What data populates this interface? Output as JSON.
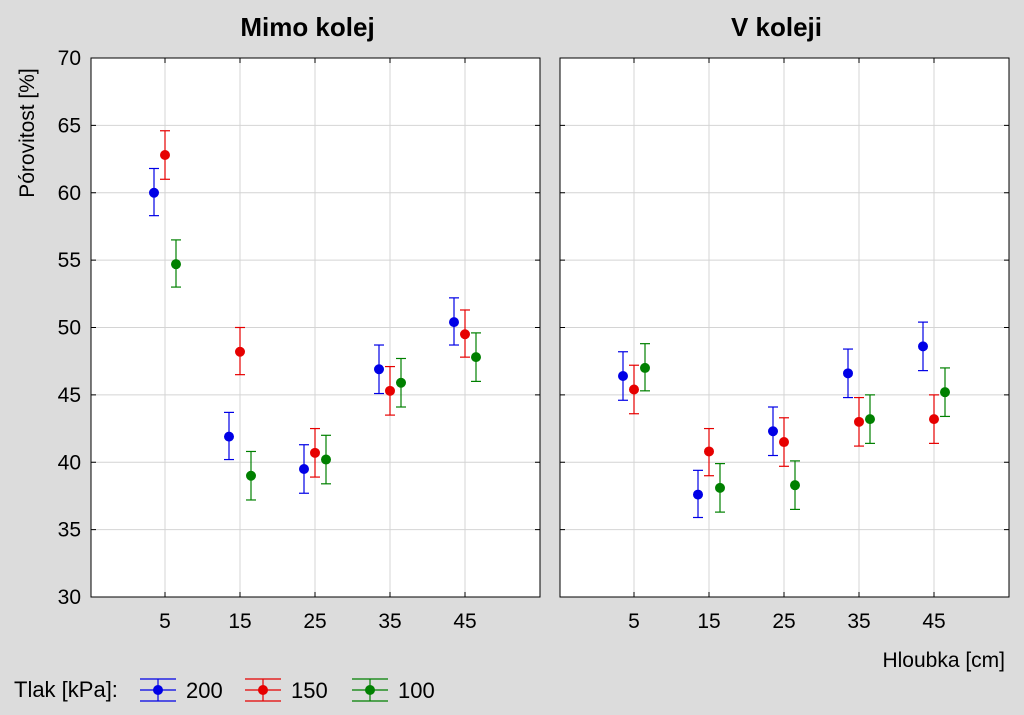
{
  "chart_data": {
    "type": "scatter",
    "ylabel": "Pórovitost [%]",
    "xlabel": "Hloubka [cm]",
    "ylim": [
      30,
      70
    ],
    "yticks": [
      30,
      35,
      40,
      45,
      50,
      55,
      60,
      65,
      70
    ],
    "categories": [
      "5",
      "15",
      "25",
      "35",
      "45"
    ],
    "grid": true,
    "legend": {
      "title": "Tlak [kPa]:",
      "placement": "bottom-left"
    },
    "series": [
      {
        "name": "200",
        "color": "#0000e6"
      },
      {
        "name": "150",
        "color": "#e60000"
      },
      {
        "name": "100",
        "color": "#008000"
      }
    ],
    "panels": [
      {
        "title": "Mimo kolej",
        "values": {
          "200": [
            {
              "mean": 60.0,
              "low": 58.3,
              "high": 61.8
            },
            {
              "mean": 41.9,
              "low": 40.2,
              "high": 43.7
            },
            {
              "mean": 39.5,
              "low": 37.7,
              "high": 41.3
            },
            {
              "mean": 46.9,
              "low": 45.1,
              "high": 48.7
            },
            {
              "mean": 50.4,
              "low": 48.7,
              "high": 52.2
            }
          ],
          "150": [
            {
              "mean": 62.8,
              "low": 61.0,
              "high": 64.6
            },
            {
              "mean": 48.2,
              "low": 46.5,
              "high": 50.0
            },
            {
              "mean": 40.7,
              "low": 38.9,
              "high": 42.5
            },
            {
              "mean": 45.3,
              "low": 43.5,
              "high": 47.1
            },
            {
              "mean": 49.5,
              "low": 47.8,
              "high": 51.3
            }
          ],
          "100": [
            {
              "mean": 54.7,
              "low": 53.0,
              "high": 56.5
            },
            {
              "mean": 39.0,
              "low": 37.2,
              "high": 40.8
            },
            {
              "mean": 40.2,
              "low": 38.4,
              "high": 42.0
            },
            {
              "mean": 45.9,
              "low": 44.1,
              "high": 47.7
            },
            {
              "mean": 47.8,
              "low": 46.0,
              "high": 49.6
            }
          ]
        }
      },
      {
        "title": "V koleji",
        "values": {
          "200": [
            {
              "mean": 46.4,
              "low": 44.6,
              "high": 48.2
            },
            {
              "mean": 37.6,
              "low": 35.9,
              "high": 39.4
            },
            {
              "mean": 42.3,
              "low": 40.5,
              "high": 44.1
            },
            {
              "mean": 46.6,
              "low": 44.8,
              "high": 48.4
            },
            {
              "mean": 48.6,
              "low": 46.8,
              "high": 50.4
            }
          ],
          "150": [
            {
              "mean": 45.4,
              "low": 43.6,
              "high": 47.2
            },
            {
              "mean": 40.8,
              "low": 39.0,
              "high": 42.5
            },
            {
              "mean": 41.5,
              "low": 39.7,
              "high": 43.3
            },
            {
              "mean": 43.0,
              "low": 41.2,
              "high": 44.8
            },
            {
              "mean": 43.2,
              "low": 41.4,
              "high": 45.0
            }
          ],
          "100": [
            {
              "mean": 47.0,
              "low": 45.3,
              "high": 48.8
            },
            {
              "mean": 38.1,
              "low": 36.3,
              "high": 39.9
            },
            {
              "mean": 38.3,
              "low": 36.5,
              "high": 40.1
            },
            {
              "mean": 43.2,
              "low": 41.4,
              "high": 45.0
            },
            {
              "mean": 45.2,
              "low": 43.4,
              "high": 47.0
            }
          ]
        }
      }
    ]
  }
}
